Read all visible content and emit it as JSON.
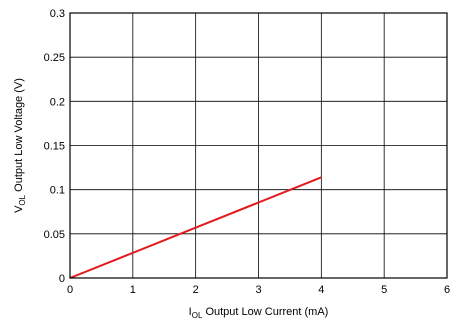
{
  "chart_data": {
    "type": "line",
    "title": "",
    "xlabel": {
      "symbol": "I",
      "subscript": "OL",
      "text": " Output Low Current (mA)"
    },
    "ylabel": {
      "symbol": "V",
      "subscript": "OL",
      "text": " Output Low Voltage (V)"
    },
    "xlim": [
      0,
      6
    ],
    "ylim": [
      0,
      0.3
    ],
    "x_ticks": [
      0,
      1,
      2,
      3,
      4,
      5,
      6
    ],
    "x_tick_labels": [
      "0",
      "1",
      "2",
      "3",
      "4",
      "5",
      "6"
    ],
    "y_ticks": [
      0,
      0.05,
      0.1,
      0.15,
      0.2,
      0.25,
      0.3
    ],
    "y_tick_labels": [
      "0",
      "0.05",
      "0.1",
      "0.15",
      "0.2",
      "0.25",
      "0.3"
    ],
    "grid": true,
    "line_color": "#e31a1c",
    "grid_color": "#000000",
    "series": [
      {
        "x": [
          0,
          4
        ],
        "y": [
          0,
          0.114
        ]
      }
    ]
  }
}
